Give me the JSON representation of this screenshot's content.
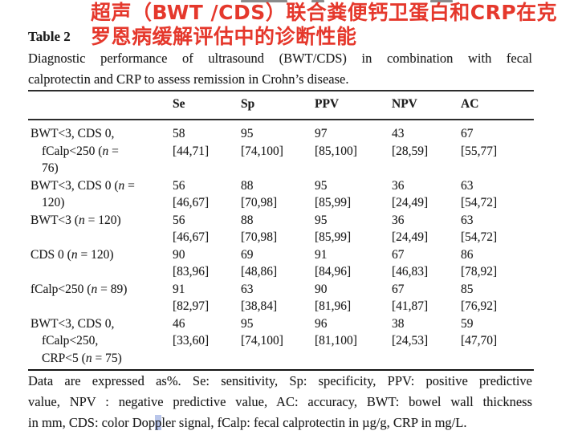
{
  "annotation": {
    "line1": "超声（BWT /CDS）联合粪便钙卫蛋白和CRP在克",
    "line2": "罗恩病缓解评估中的诊断性能",
    "color": "#e5382c"
  },
  "doc": {
    "table_label": "Table 2",
    "caption_line1": "Diagnostic performance of ultrasound (BWT/CDS) in combination with fecal",
    "caption_line2": "calprotectin and CRP to assess remission in Crohn’s disease."
  },
  "table": {
    "headers": [
      "Se",
      "Sp",
      "PPV",
      "NPV",
      "AC"
    ],
    "rows": [
      {
        "label_lines": [
          "BWT<3, CDS 0,",
          "fCalp<250 (n =",
          "76)"
        ],
        "cells": [
          [
            "58",
            "[44,71]"
          ],
          [
            "95",
            "[74,100]"
          ],
          [
            "97",
            "[85,100]"
          ],
          [
            "43",
            "[28,59]"
          ],
          [
            "67",
            "[55,77]"
          ]
        ]
      },
      {
        "label_lines": [
          "BWT<3, CDS 0 (n =",
          "120)"
        ],
        "cells": [
          [
            "56",
            "[46,67]"
          ],
          [
            "88",
            "[70,98]"
          ],
          [
            "95",
            "[85,99]"
          ],
          [
            "36",
            "[24,49]"
          ],
          [
            "63",
            "[54,72]"
          ]
        ]
      },
      {
        "label_lines": [
          "BWT<3 (n = 120)"
        ],
        "cells": [
          [
            "56",
            "[46,67]"
          ],
          [
            "88",
            "[70,98]"
          ],
          [
            "95",
            "[85,99]"
          ],
          [
            "36",
            "[24,49]"
          ],
          [
            "63",
            "[54,72]"
          ]
        ]
      },
      {
        "label_lines": [
          "CDS 0 (n = 120)"
        ],
        "cells": [
          [
            "90",
            "[83,96]"
          ],
          [
            "69",
            "[48,86]"
          ],
          [
            "91",
            "[84,96]"
          ],
          [
            "67",
            "[46,83]"
          ],
          [
            "86",
            "[78,92]"
          ]
        ]
      },
      {
        "label_lines": [
          "fCalp<250 (n = 89)"
        ],
        "cells": [
          [
            "91",
            "[82,97]"
          ],
          [
            "63",
            "[38,84]"
          ],
          [
            "90",
            "[81,96]"
          ],
          [
            "67",
            "[41,87]"
          ],
          [
            "85",
            "[76,92]"
          ]
        ]
      },
      {
        "label_lines": [
          "BWT<3, CDS 0,",
          "fCalp<250,",
          "CRP<5 (n = 75)"
        ],
        "cells": [
          [
            "46",
            "[33,60]"
          ],
          [
            "95",
            "[74,100]"
          ],
          [
            "96",
            "[81,100]"
          ],
          [
            "38",
            "[24,53]"
          ],
          [
            "59",
            "[47,70]"
          ]
        ]
      }
    ]
  },
  "footnote": {
    "line1": "Data are expressed as%. Se: sensitivity, Sp: specificity, PPV: positive predictive",
    "line2": "value, NPV : negative predictive value, AC: accuracy, BWT: bowel wall thickness",
    "line3_pre": "in mm, CDS: color Dop",
    "line3_highlight": "p",
    "line3_post": "ler signal, fCalp: fecal calprotectin in µg/g, CRP in mg/L.",
    "highlight_color": "#b9c6ea"
  }
}
